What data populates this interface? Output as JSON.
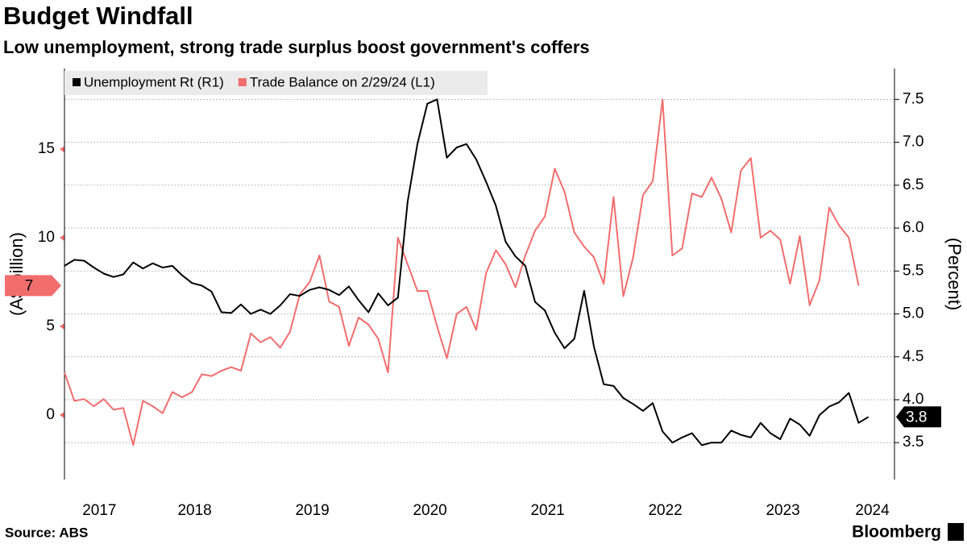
{
  "chart_data": {
    "type": "line",
    "title": "Budget Windfall",
    "subtitle": "Low unemployment, strong trade surplus boost government's coffers",
    "source": "Source: ABS",
    "brand": "Bloomberg",
    "ylabel": "(A$ billion)",
    "y2label": "(Percent)",
    "legend": "top-left",
    "grid": true,
    "x": [
      2017.333,
      2017.417,
      2017.5,
      2017.583,
      2017.667,
      2017.75,
      2017.833,
      2017.917,
      2018,
      2018.083,
      2018.167,
      2018.25,
      2018.333,
      2018.417,
      2018.5,
      2018.583,
      2018.667,
      2018.75,
      2018.833,
      2018.917,
      2019,
      2019.083,
      2019.167,
      2019.25,
      2019.333,
      2019.417,
      2019.5,
      2019.583,
      2019.667,
      2019.75,
      2019.833,
      2019.917,
      2020,
      2020.083,
      2020.167,
      2020.25,
      2020.333,
      2020.417,
      2020.5,
      2020.583,
      2020.667,
      2020.75,
      2020.833,
      2020.917,
      2021,
      2021.083,
      2021.167,
      2021.25,
      2021.333,
      2021.417,
      2021.5,
      2021.583,
      2021.667,
      2021.75,
      2021.833,
      2021.917,
      2022,
      2022.083,
      2022.167,
      2022.25,
      2022.333,
      2022.417,
      2022.5,
      2022.583,
      2022.667,
      2022.75,
      2022.833,
      2022.917,
      2023,
      2023.083,
      2023.167,
      2023.25,
      2023.333,
      2023.417,
      2023.5,
      2023.583,
      2023.667,
      2023.75,
      2023.833,
      2023.917,
      2024,
      2024.083,
      2024.167
    ],
    "xlim": [
      2017.333,
      2024.388
    ],
    "xticks": [
      {
        "value": 2017.63,
        "label": "2017"
      },
      {
        "value": 2018.44,
        "label": "2018"
      },
      {
        "value": 2019.44,
        "label": "2019"
      },
      {
        "value": 2020.44,
        "label": "2020"
      },
      {
        "value": 2021.44,
        "label": "2021"
      },
      {
        "value": 2022.44,
        "label": "2022"
      },
      {
        "value": 2023.44,
        "label": "2023"
      },
      {
        "value": 2024.2,
        "label": "2024"
      }
    ],
    "ylim": [
      -3.64,
      19.55
    ],
    "yticks": [
      0,
      5,
      10,
      15
    ],
    "y2lim": [
      3.07,
      7.86
    ],
    "y2ticks": [
      3.5,
      {
        "value": 4,
        "label": "4.0"
      },
      4.5,
      {
        "value": 5,
        "label": "5.0"
      },
      5.5,
      {
        "value": 6,
        "label": "6.0"
      },
      6.5,
      {
        "value": 7,
        "label": "7.0"
      },
      7.5
    ],
    "series": [
      {
        "name": "Unemployment Rt (R1)",
        "color": "#000000",
        "axis": "y2",
        "values": [
          5.56,
          5.63,
          5.62,
          5.54,
          5.47,
          5.43,
          5.46,
          5.6,
          5.53,
          5.59,
          5.54,
          5.56,
          5.45,
          5.36,
          5.33,
          5.26,
          5.02,
          5.01,
          5.11,
          5.0,
          5.05,
          5.0,
          5.1,
          5.23,
          5.21,
          5.28,
          5.31,
          5.28,
          5.22,
          5.32,
          5.16,
          5.02,
          5.24,
          5.1,
          5.19,
          6.31,
          6.98,
          7.45,
          7.5,
          6.82,
          6.94,
          6.98,
          6.8,
          6.54,
          6.26,
          5.84,
          5.67,
          5.56,
          5.14,
          5.04,
          4.78,
          4.6,
          4.71,
          5.27,
          4.62,
          4.18,
          4.16,
          4.02,
          3.95,
          3.87,
          3.96,
          3.63,
          3.5,
          3.56,
          3.61,
          3.47,
          3.5,
          3.5,
          3.64,
          3.59,
          3.56,
          3.73,
          3.61,
          3.54,
          3.78,
          3.71,
          3.58,
          3.82,
          3.92,
          3.97,
          4.08,
          3.73,
          3.8
        ]
      },
      {
        "name": "Trade Balance on 2/29/24 (L1)",
        "color": "#f26d6d",
        "axis": "y",
        "values": [
          2.4,
          0.8,
          0.9,
          0.5,
          0.9,
          0.3,
          0.4,
          -1.7,
          0.8,
          0.5,
          0.1,
          1.3,
          1.0,
          1.3,
          2.3,
          2.2,
          2.5,
          2.7,
          2.5,
          4.6,
          4.1,
          4.4,
          3.8,
          4.7,
          6.8,
          7.5,
          9.0,
          6.4,
          6.1,
          3.9,
          5.5,
          5.1,
          4.3,
          2.4,
          10.0,
          8.5,
          7.0,
          7.0,
          5.0,
          3.2,
          5.7,
          6.1,
          4.8,
          8.0,
          9.3,
          8.5,
          7.2,
          9.0,
          10.4,
          11.2,
          13.9,
          12.6,
          10.3,
          9.5,
          8.9,
          7.4,
          12.3,
          6.7,
          8.9,
          12.4,
          13.2,
          17.8,
          9.0,
          9.4,
          12.5,
          12.3,
          13.4,
          12.2,
          10.3,
          13.8,
          14.5,
          10.0,
          10.4,
          9.9,
          7.4,
          10.1,
          6.2,
          7.6,
          11.7,
          10.7,
          10.0,
          7.3,
          null
        ],
        "value_labels": [
          null,
          null,
          null,
          null,
          null,
          null,
          null,
          null,
          null,
          null,
          null,
          null,
          null,
          null,
          null,
          null,
          null,
          null,
          null,
          null,
          null,
          null,
          null,
          null,
          null,
          null,
          null,
          null,
          null,
          null,
          null,
          null,
          null,
          null,
          null,
          null,
          null,
          null,
          null,
          null,
          null,
          null,
          null,
          null,
          null,
          null,
          null,
          null,
          null,
          null,
          null,
          null,
          null,
          null,
          null,
          null,
          null,
          null,
          null,
          null,
          null,
          null,
          null,
          null,
          null,
          null,
          null,
          null,
          null,
          null,
          null,
          null,
          null,
          null,
          null,
          null,
          null,
          null,
          null,
          null,
          null,
          "7",
          null
        ]
      }
    ]
  }
}
